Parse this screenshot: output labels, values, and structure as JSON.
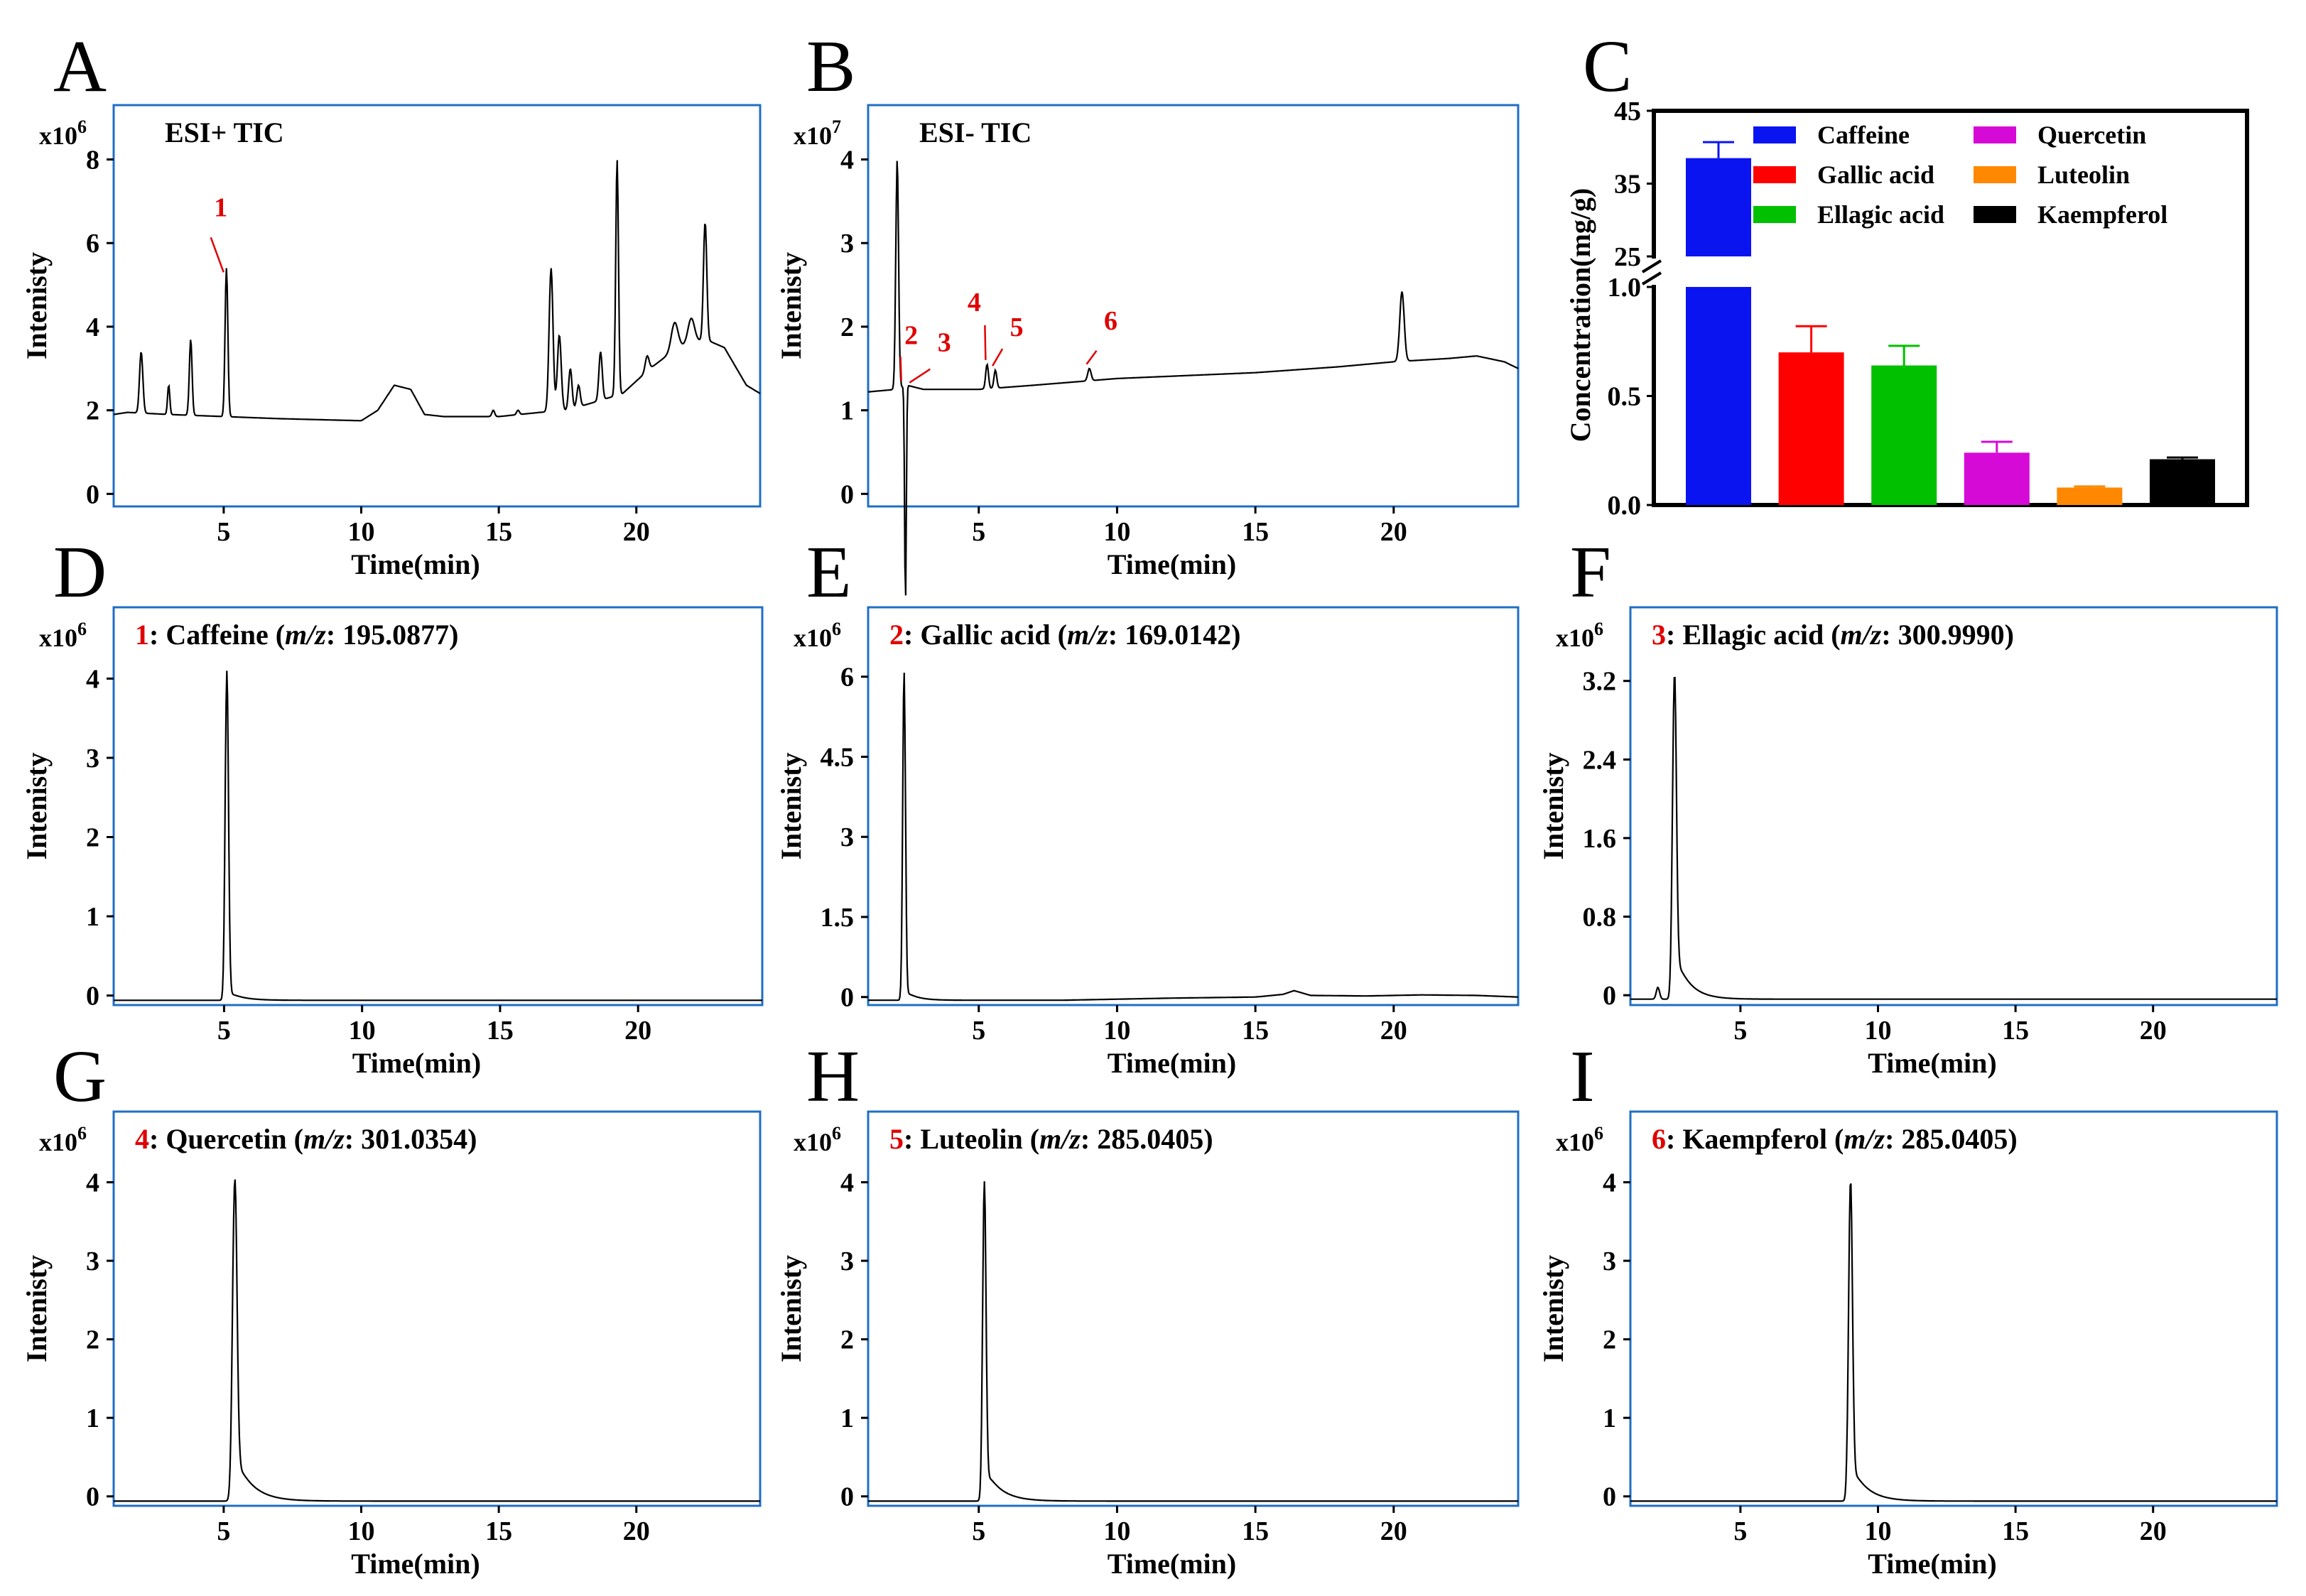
{
  "colors": {
    "frame": "#1f6fc4",
    "trace": "#000000",
    "highlight": "#e00000",
    "bar_frame": "#000000"
  },
  "chart_data": [
    {
      "id": "A",
      "panel_letter": "A",
      "type": "line",
      "title": "ESI+  TIC",
      "exponent_base": "x10",
      "exponent": "6",
      "xlabel": "Time(min)",
      "ylabel": "Intenisty",
      "xlim": [
        1,
        24.5
      ],
      "ylim": [
        -0.3,
        9.3
      ],
      "xticks": [
        5,
        10,
        15,
        20
      ],
      "yticks": [
        0,
        2,
        4,
        6,
        8
      ],
      "baseline": [
        [
          1,
          1.9
        ],
        [
          1.5,
          1.95
        ],
        [
          3,
          1.9
        ],
        [
          5,
          1.85
        ],
        [
          7,
          1.8
        ],
        [
          10,
          1.75
        ],
        [
          10.6,
          2.0
        ],
        [
          11.2,
          2.6
        ],
        [
          11.8,
          2.5
        ],
        [
          12.3,
          1.9
        ],
        [
          13,
          1.85
        ],
        [
          15,
          1.85
        ],
        [
          16.5,
          1.95
        ],
        [
          17.5,
          2.0
        ],
        [
          18,
          2.1
        ],
        [
          19,
          2.3
        ],
        [
          19.5,
          2.4
        ],
        [
          20.5,
          3.0
        ],
        [
          21.5,
          3.5
        ],
        [
          22.5,
          3.7
        ],
        [
          23.2,
          3.5
        ],
        [
          24,
          2.6
        ],
        [
          24.5,
          2.4
        ]
      ],
      "peaks": [
        [
          2.0,
          3.4,
          0.06
        ],
        [
          3.0,
          2.6,
          0.04
        ],
        [
          3.8,
          3.7,
          0.05
        ],
        [
          5.1,
          5.4,
          0.05
        ],
        [
          14.8,
          2.0,
          0.05
        ],
        [
          15.7,
          2.0,
          0.05
        ],
        [
          16.9,
          5.4,
          0.07
        ],
        [
          17.2,
          3.8,
          0.07
        ],
        [
          17.6,
          3.0,
          0.06
        ],
        [
          17.9,
          2.6,
          0.06
        ],
        [
          18.7,
          3.4,
          0.06
        ],
        [
          19.3,
          8.0,
          0.05
        ],
        [
          20.4,
          3.3,
          0.07
        ],
        [
          21.4,
          4.1,
          0.12
        ],
        [
          22.0,
          4.2,
          0.12
        ],
        [
          22.5,
          6.5,
          0.06
        ]
      ],
      "markers": [
        {
          "label": "1",
          "x": 5.1,
          "y": 5.2
        }
      ]
    },
    {
      "id": "B",
      "panel_letter": "B",
      "type": "line",
      "title": "ESI-  TIC",
      "exponent_base": "x10",
      "exponent": "7",
      "xlabel": "Time(min)",
      "ylabel": "Intenisty",
      "xlim": [
        1,
        24.5
      ],
      "ylim": [
        -0.15,
        4.65
      ],
      "xticks": [
        5,
        10,
        15,
        20
      ],
      "yticks": [
        0,
        1,
        2,
        3,
        4
      ],
      "baseline": [
        [
          1,
          1.22
        ],
        [
          2,
          1.25
        ],
        [
          2.4,
          1.3
        ],
        [
          3,
          1.25
        ],
        [
          5,
          1.25
        ],
        [
          7,
          1.3
        ],
        [
          10,
          1.38
        ],
        [
          15,
          1.45
        ],
        [
          18,
          1.52
        ],
        [
          20,
          1.58
        ],
        [
          22,
          1.62
        ],
        [
          23,
          1.65
        ],
        [
          24,
          1.58
        ],
        [
          24.5,
          1.5
        ]
      ],
      "peaks": [
        [
          2.05,
          4.0,
          0.05
        ],
        [
          2.35,
          -1.3,
          0.03
        ],
        [
          5.3,
          1.55,
          0.05
        ],
        [
          5.6,
          1.48,
          0.05
        ],
        [
          9.0,
          1.5,
          0.06
        ],
        [
          20.3,
          2.42,
          0.08
        ]
      ],
      "markers": [
        {
          "label": "2",
          "x": 2.3,
          "y": 1.3
        },
        {
          "label": "3",
          "x": 2.6,
          "y": 1.28
        },
        {
          "label": "4",
          "x": 5.35,
          "y": 1.55
        },
        {
          "label": "5",
          "x": 5.6,
          "y": 1.48
        },
        {
          "label": "6",
          "x": 9.0,
          "y": 1.5
        }
      ]
    },
    {
      "id": "C",
      "panel_letter": "C",
      "type": "bar",
      "ylabel": "Concentration(mg/g)",
      "categories": [
        "Caffeine",
        "Gallic acid",
        "Ellagic acid",
        "Quercetin",
        "Luteolin",
        "Kaempferol"
      ],
      "values": [
        38.5,
        0.7,
        0.64,
        0.24,
        0.08,
        0.21
      ],
      "errors": [
        2.2,
        0.12,
        0.09,
        0.05,
        0.005,
        0.008
      ],
      "series_colors": [
        "#0a14f0",
        "#ff0000",
        "#00c000",
        "#d60ad6",
        "#ff8800",
        "#000000"
      ],
      "broken_axis": {
        "lower_range": [
          0,
          1.0
        ],
        "upper_range": [
          25,
          45
        ]
      },
      "yticks_lower": [
        "0.0",
        "0.5",
        "1.0"
      ],
      "yticks_upper": [
        "25",
        "35",
        "45"
      ],
      "legend": [
        {
          "label": "Caffeine",
          "color": "#0a14f0"
        },
        {
          "label": "Quercetin",
          "color": "#d60ad6"
        },
        {
          "label": "Gallic acid",
          "color": "#ff0000"
        },
        {
          "label": "Luteolin",
          "color": "#ff8800"
        },
        {
          "label": "Ellagic acid",
          "color": "#00c000"
        },
        {
          "label": "Kaempferol",
          "color": "#000000"
        }
      ]
    },
    {
      "id": "D",
      "panel_letter": "D",
      "type": "line",
      "title_num": "1",
      "title_name": ": Caffeine (",
      "title_mz": "m/z",
      "title_value": ": 195.0877)",
      "exponent_base": "x10",
      "exponent": "6",
      "xlabel": "Time(min)",
      "ylabel": "Intenisty",
      "xlim": [
        1,
        24.5
      ],
      "ylim": [
        -0.12,
        4.9
      ],
      "xticks": [
        5,
        10,
        15,
        20
      ],
      "yticks": [
        0,
        1,
        2,
        3,
        4
      ],
      "baseline": [
        [
          1,
          -0.06
        ],
        [
          24.5,
          -0.06
        ]
      ],
      "peaks": [
        [
          5.1,
          4.1,
          0.06
        ]
      ],
      "tail": {
        "x": 5.1,
        "amp": 0.12,
        "decay": 0.5
      }
    },
    {
      "id": "E",
      "panel_letter": "E",
      "type": "line",
      "title_num": "2",
      "title_name": ": Gallic acid (",
      "title_mz": "m/z",
      "title_value": ": 169.0142)",
      "exponent_base": "x10",
      "exponent": "6",
      "xlabel": "Time(min)",
      "ylabel": "Intenisty",
      "xlim": [
        1,
        24.5
      ],
      "ylim": [
        -0.15,
        7.3
      ],
      "xticks": [
        5,
        10,
        15,
        20
      ],
      "yticks": [
        0,
        1.5,
        3,
        4.5,
        6
      ],
      "ytick_labels": [
        "0",
        "1.5",
        "3",
        "4.5",
        "6"
      ],
      "baseline": [
        [
          1,
          -0.06
        ],
        [
          8,
          -0.06
        ],
        [
          12,
          -0.02
        ],
        [
          15,
          0.0
        ],
        [
          16,
          0.05
        ],
        [
          16.4,
          0.12
        ],
        [
          17,
          0.03
        ],
        [
          19,
          0.02
        ],
        [
          21,
          0.04
        ],
        [
          23,
          0.03
        ],
        [
          24.5,
          0.0
        ]
      ],
      "peaks": [
        [
          2.3,
          6.1,
          0.05
        ]
      ],
      "tail": {
        "x": 2.3,
        "amp": 0.2,
        "decay": 0.4
      }
    },
    {
      "id": "F",
      "panel_letter": "F",
      "type": "line",
      "title_num": "3",
      "title_name": ": Ellagic acid (",
      "title_mz": "m/z",
      "title_value": ": 300.9990)",
      "exponent_base": "x10",
      "exponent": "6",
      "xlabel": "Time(min)",
      "ylabel": "Intenisty",
      "xlim": [
        1,
        24.5
      ],
      "ylim": [
        -0.1,
        3.95
      ],
      "xticks": [
        5,
        10,
        15,
        20
      ],
      "yticks": [
        0,
        0.8,
        1.6,
        2.4,
        3.2
      ],
      "ytick_labels": [
        "0",
        "0.8",
        "1.6",
        "2.4",
        "3.2"
      ],
      "baseline": [
        [
          1,
          -0.04
        ],
        [
          24.5,
          -0.04
        ]
      ],
      "peaks": [
        [
          2.0,
          0.08,
          0.06
        ],
        [
          2.6,
          3.25,
          0.07
        ]
      ],
      "tail": {
        "x": 2.6,
        "amp": 0.5,
        "decay": 0.5
      }
    },
    {
      "id": "G",
      "panel_letter": "G",
      "type": "line",
      "title_num": "4",
      "title_name": ": Quercetin (",
      "title_mz": "m/z",
      "title_value": ": 301.0354)",
      "exponent_base": "x10",
      "exponent": "6",
      "xlabel": "Time(min)",
      "ylabel": "Intenisty",
      "xlim": [
        1,
        24.5
      ],
      "ylim": [
        -0.12,
        4.9
      ],
      "xticks": [
        5,
        10,
        15,
        20
      ],
      "yticks": [
        0,
        1,
        2,
        3,
        4
      ],
      "baseline": [
        [
          1,
          -0.06
        ],
        [
          24.5,
          -0.06
        ]
      ],
      "peaks": [
        [
          5.4,
          4.0,
          0.08
        ]
      ],
      "tail": {
        "x": 5.4,
        "amp": 0.6,
        "decay": 0.6
      }
    },
    {
      "id": "H",
      "panel_letter": "H",
      "type": "line",
      "title_num": "5",
      "title_name": ": Luteolin (",
      "title_mz": "m/z",
      "title_value": ": 285.0405)",
      "exponent_base": "x10",
      "exponent": "6",
      "xlabel": "Time(min)",
      "ylabel": "Intenisty",
      "xlim": [
        1,
        24.5
      ],
      "ylim": [
        -0.12,
        4.9
      ],
      "xticks": [
        5,
        10,
        15,
        20
      ],
      "yticks": [
        0,
        1,
        2,
        3,
        4
      ],
      "baseline": [
        [
          1,
          -0.06
        ],
        [
          24.5,
          -0.06
        ]
      ],
      "peaks": [
        [
          5.2,
          4.0,
          0.06
        ]
      ],
      "tail": {
        "x": 5.2,
        "amp": 0.45,
        "decay": 0.55
      }
    },
    {
      "id": "I",
      "panel_letter": "I",
      "type": "line",
      "title_num": "6",
      "title_name": ": Kaempferol (",
      "title_mz": "m/z",
      "title_value": ": 285.0405)",
      "exponent_base": "x10",
      "exponent": "6",
      "xlabel": "Time(min)",
      "ylabel": "Intenisty",
      "xlim": [
        1,
        24.5
      ],
      "ylim": [
        -0.12,
        4.9
      ],
      "xticks": [
        5,
        10,
        15,
        20
      ],
      "yticks": [
        0,
        1,
        2,
        3,
        4
      ],
      "baseline": [
        [
          1,
          -0.06
        ],
        [
          24.5,
          -0.06
        ]
      ],
      "peaks": [
        [
          9.0,
          4.0,
          0.07
        ]
      ],
      "tail": {
        "x": 9.0,
        "amp": 0.5,
        "decay": 0.55
      }
    }
  ]
}
